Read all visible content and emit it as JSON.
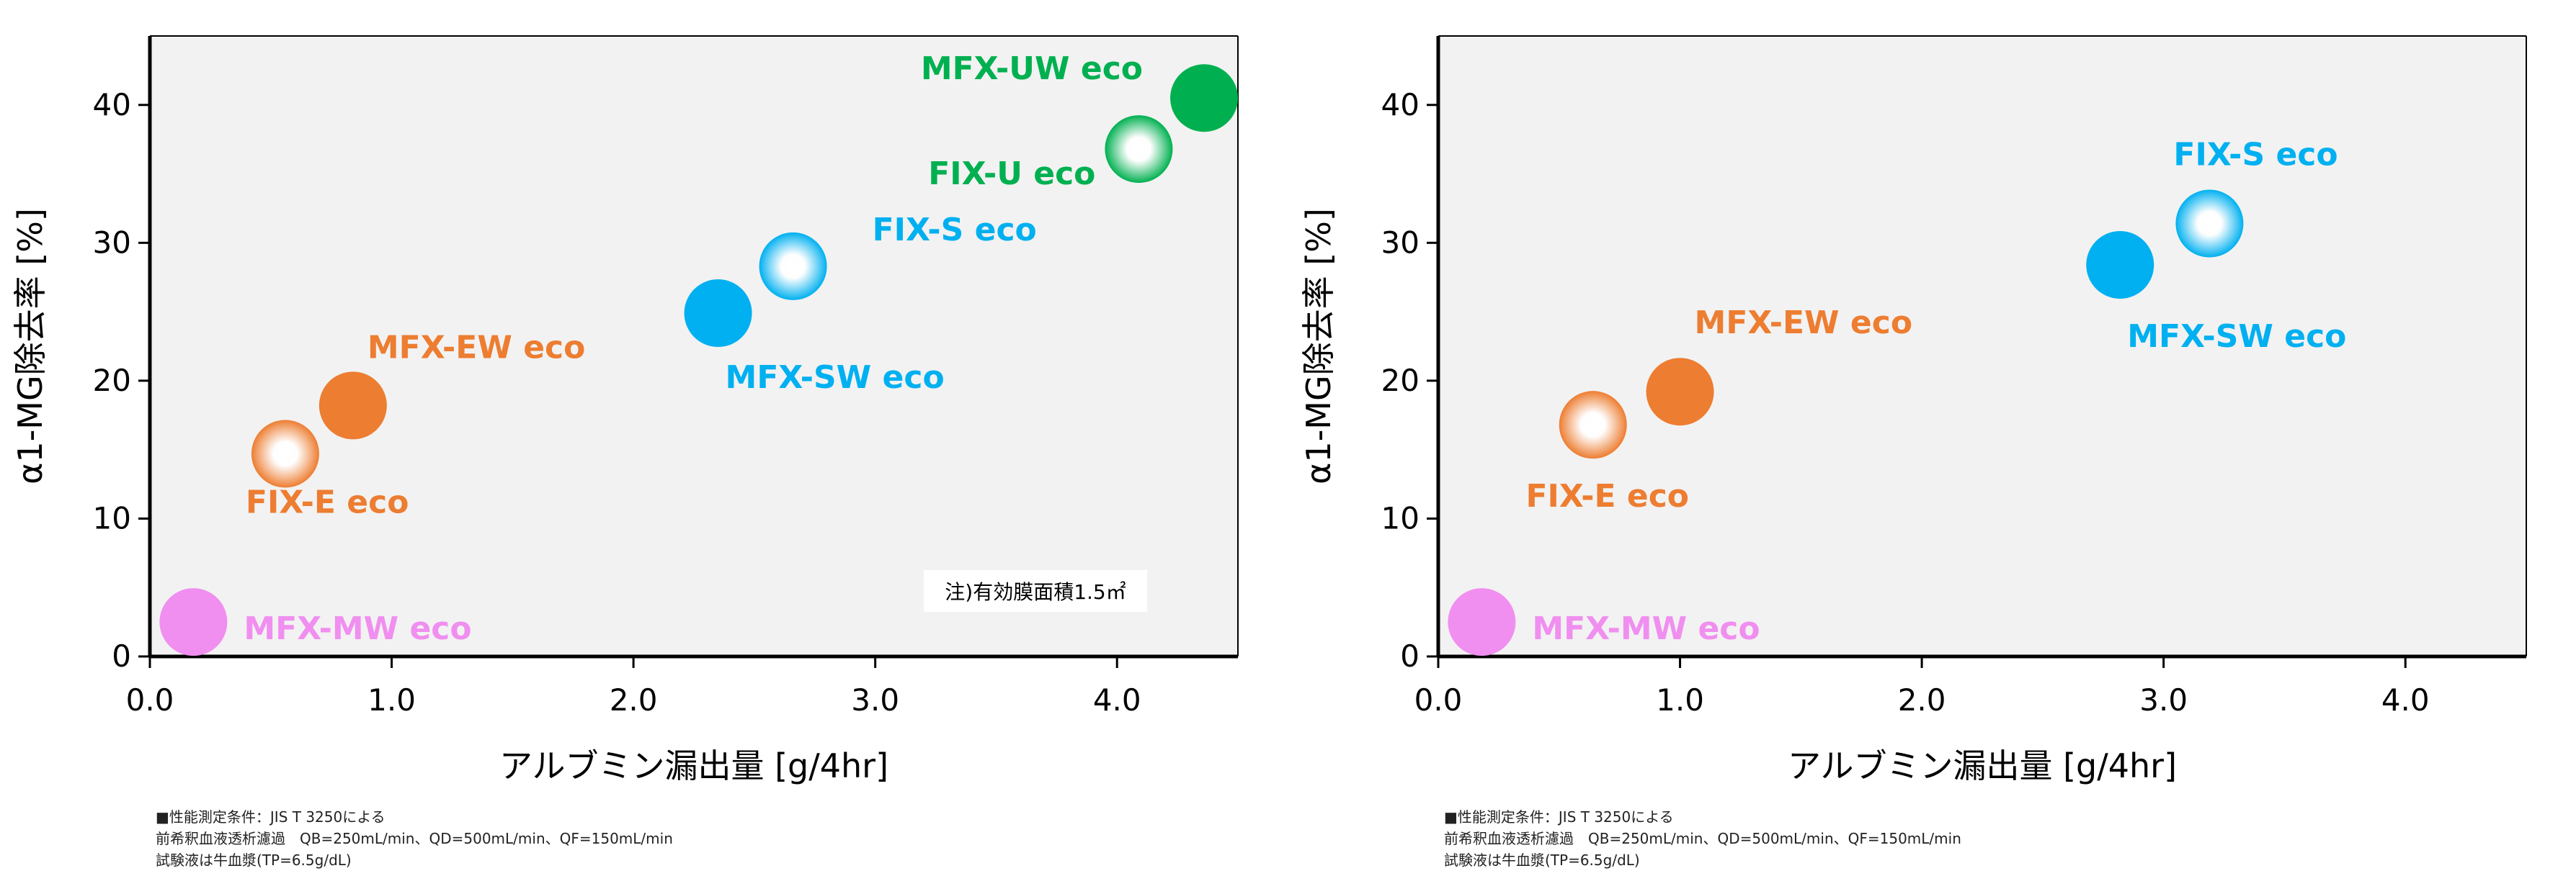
{
  "chart_data": [
    {
      "type": "scatter",
      "xlabel": "アルブミン漏出量 [g/4hr]",
      "ylabel": "α1-MG除去率 [%]",
      "xlim": [
        0,
        4.5
      ],
      "ylim": [
        0,
        45
      ],
      "x_ticks": [
        "0.0",
        "1.0",
        "2.0",
        "3.0",
        "4.0"
      ],
      "y_ticks": [
        "0",
        "10",
        "20",
        "30",
        "40"
      ],
      "grid": false,
      "annotation": "注)有効膜面積1.5㎡",
      "points": [
        {
          "label": "MFX-MW eco",
          "x": 0.18,
          "y": 2.5,
          "color": "#f08ff0",
          "style": "solid"
        },
        {
          "label": "FIX-E eco",
          "x": 0.56,
          "y": 14.7,
          "color": "#ed7d31",
          "style": "gradient"
        },
        {
          "label": "MFX-EW eco",
          "x": 0.84,
          "y": 18.2,
          "color": "#ed7d31",
          "style": "solid"
        },
        {
          "label": "MFX-SW eco",
          "x": 2.35,
          "y": 24.9,
          "color": "#00b0f0",
          "style": "solid"
        },
        {
          "label": "FIX-S eco",
          "x": 2.66,
          "y": 28.3,
          "color": "#00b0f0",
          "style": "gradient"
        },
        {
          "label": "FIX-U eco",
          "x": 4.09,
          "y": 36.8,
          "color": "#00b050",
          "style": "gradient"
        },
        {
          "label": "MFX-UW eco",
          "x": 4.36,
          "y": 40.5,
          "color": "#00b050",
          "style": "solid"
        }
      ],
      "notes": [
        "■性能測定条件：JIS T 3250による",
        "前希釈血液透析濾過　QB=250mL/min、QD=500mL/min、QF=150mL/min",
        "試験液は牛血漿(TP=6.5g/dL)"
      ]
    },
    {
      "type": "scatter",
      "xlabel": "アルブミン漏出量 [g/4hr]",
      "ylabel": "α1-MG除去率 [%]",
      "xlim": [
        0,
        4.5
      ],
      "ylim": [
        0,
        45
      ],
      "x_ticks": [
        "0.0",
        "1.0",
        "2.0",
        "3.0",
        "4.0"
      ],
      "y_ticks": [
        "0",
        "10",
        "20",
        "30",
        "40"
      ],
      "grid": false,
      "points": [
        {
          "label": "MFX-MW eco",
          "x": 0.18,
          "y": 2.5,
          "color": "#f08ff0",
          "style": "solid"
        },
        {
          "label": "FIX-E eco",
          "x": 0.64,
          "y": 16.8,
          "color": "#ed7d31",
          "style": "gradient"
        },
        {
          "label": "MFX-EW eco",
          "x": 1.0,
          "y": 19.2,
          "color": "#ed7d31",
          "style": "solid"
        },
        {
          "label": "MFX-SW eco",
          "x": 2.82,
          "y": 28.4,
          "color": "#00b0f0",
          "style": "solid"
        },
        {
          "label": "FIX-S eco",
          "x": 3.19,
          "y": 31.4,
          "color": "#00b0f0",
          "style": "gradient"
        }
      ],
      "notes": [
        "■性能測定条件：JIS T 3250による",
        "前希釈血液透析濾過　QB=250mL/min、QD=500mL/min、QF=150mL/min",
        "試験液は牛血漿(TP=6.5g/dL)"
      ]
    }
  ]
}
